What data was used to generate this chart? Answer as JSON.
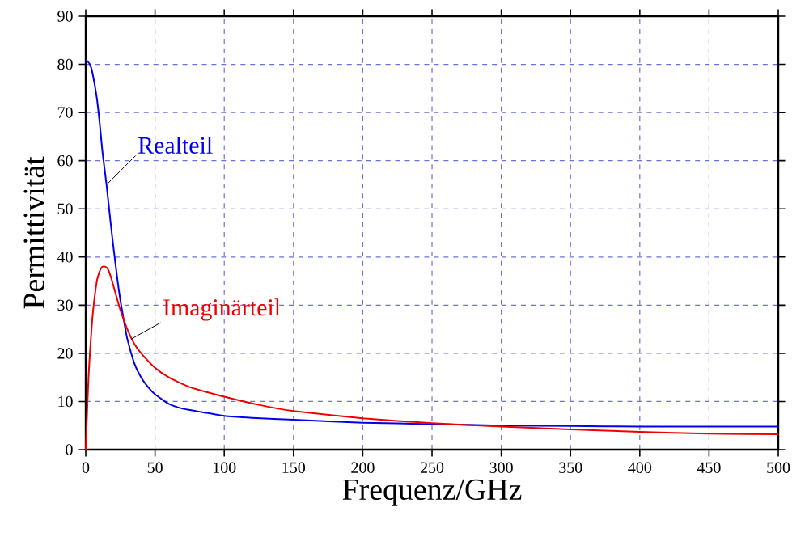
{
  "chart_data": {
    "type": "line",
    "xlabel": "Frequenz/GHz",
    "ylabel": "Permittivität",
    "xlim": [
      0,
      500
    ],
    "ylim": [
      0,
      90
    ],
    "xticks": [
      0,
      50,
      100,
      150,
      200,
      250,
      300,
      350,
      400,
      450,
      500
    ],
    "yticks": [
      0,
      10,
      20,
      30,
      40,
      50,
      60,
      70,
      80,
      90
    ],
    "grid": true,
    "line_style": "solid",
    "marker": "none",
    "series": [
      {
        "color": "#0000ee",
        "x": [
          0,
          3,
          5,
          8,
          10,
          12,
          15,
          18,
          20,
          23,
          25,
          28,
          30,
          35,
          40,
          45,
          50,
          60,
          70,
          80,
          100,
          120,
          150,
          200,
          250,
          300,
          350,
          400,
          450,
          500
        ],
        "values": [
          81,
          80,
          78,
          73,
          68,
          62,
          55,
          47,
          42,
          35,
          31,
          26,
          23,
          18,
          15,
          13,
          11.5,
          9.5,
          8.5,
          8,
          7,
          6.6,
          6.2,
          5.6,
          5.3,
          5,
          4.9,
          4.8,
          4.8,
          4.8
        ]
      },
      {
        "color": "#ee0000",
        "x": [
          0,
          1,
          2,
          3,
          5,
          8,
          10,
          12,
          14,
          16,
          18,
          20,
          25,
          30,
          35,
          40,
          50,
          60,
          75,
          100,
          125,
          150,
          200,
          250,
          300,
          350,
          400,
          450,
          500
        ],
        "values": [
          0,
          8,
          15,
          20,
          28,
          35,
          37,
          38,
          38,
          37.5,
          36,
          34,
          29,
          25,
          22,
          20,
          17,
          15,
          13,
          11,
          9.3,
          8,
          6.5,
          5.5,
          4.8,
          4.2,
          3.7,
          3.3,
          3.2
        ]
      }
    ],
    "annotations": [
      {
        "text": "Realteil",
        "x": 15,
        "y": 55
      },
      {
        "text": "Imaginärteil",
        "x": 33,
        "y": 23
      }
    ]
  }
}
